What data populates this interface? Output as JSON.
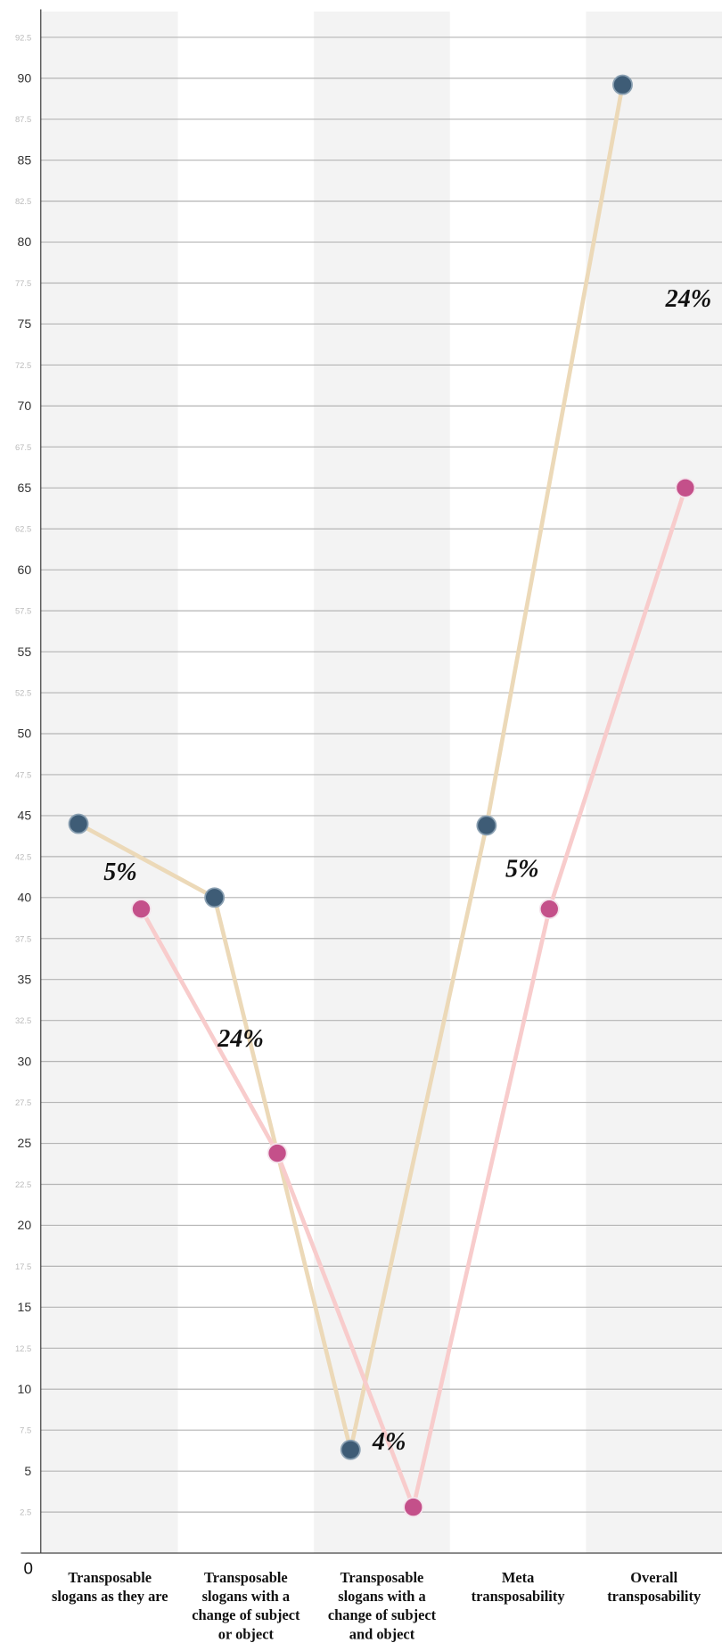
{
  "chart_data": {
    "type": "line",
    "categories": [
      "Transposable slogans as they are",
      "Transposable slogans with a change of subject or object",
      "Transposable slogans with a change of subject and object",
      "Meta transposability",
      "Overall transposability"
    ],
    "series": [
      {
        "color": "#3e5c76",
        "line_color": "#ecd9b8",
        "values": [
          44.5,
          40,
          6.3,
          44.4,
          89.6
        ]
      },
      {
        "color": "#c4508a",
        "line_color": "#f8cccc",
        "values": [
          39.3,
          24.4,
          2.8,
          39.3,
          65
        ]
      }
    ],
    "annotations": [
      "5%",
      "24%",
      "4%",
      "5%",
      "24%"
    ],
    "ylim": [
      0,
      94.2
    ],
    "yticks": [
      0,
      2.5,
      5,
      7.5,
      10,
      12.5,
      15,
      17.5,
      20,
      22.5,
      25,
      27.5,
      30,
      32.5,
      35,
      37.5,
      40,
      42.5,
      45,
      47.5,
      50,
      52.5,
      55,
      57.5,
      60,
      62.5,
      65,
      67.5,
      70,
      72.5,
      75,
      77.5,
      80,
      82.5,
      85,
      87.5,
      90,
      92.5
    ],
    "grid": true
  }
}
